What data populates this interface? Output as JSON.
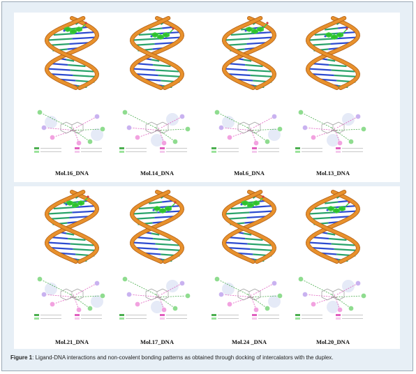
{
  "figure": {
    "caption_label": "Figure 1",
    "caption_text": ": Ligand-DNA interactions and non-covalent bonding patterns as obtained through docking of intercalators with the duplex.",
    "panels": [
      {
        "labels": [
          "Mol.16_DNA",
          "Mol.14_DNA",
          "Mol.6_DNA",
          "Mol.13_DNA"
        ]
      },
      {
        "labels": [
          "Mol.21_DNA",
          "Mol.17_DNA",
          "Mol.24 _DNA",
          "Mol.20_DNA"
        ]
      }
    ]
  },
  "colors": {
    "backbone": "#e8912c",
    "backbone_dark": "#b8661a",
    "base_blue": "#2c4bd0",
    "base_green": "#2aa36a",
    "ligand": "#3bd13b",
    "outer_bg": "#e7eff6",
    "interaction_pink": "#e05fbf",
    "interaction_green": "#4caf50",
    "bubble": "#cfd8f0"
  }
}
